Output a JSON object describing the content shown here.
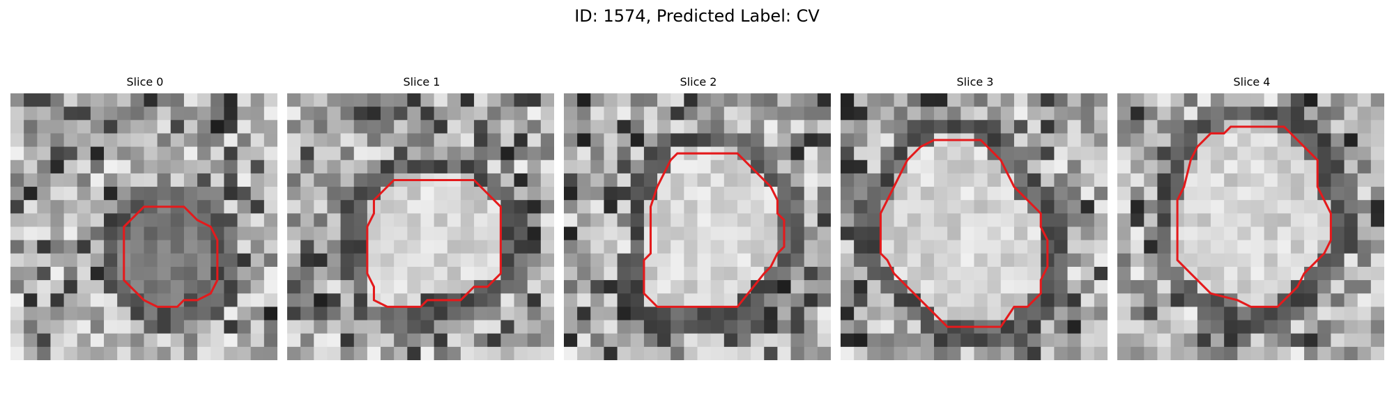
{
  "figure": {
    "title": "ID: 1574, Predicted Label: CV",
    "contour_color": "#e41a1c"
  },
  "panels": [
    {
      "title": "Slice 0",
      "image": "grayscale microscopy crop with small dark round object outlined in red",
      "contour": [
        [
          11,
          8.5
        ],
        [
          13,
          8.5
        ],
        [
          14,
          9.5
        ],
        [
          15,
          10
        ],
        [
          15.5,
          11
        ],
        [
          15.5,
          14
        ],
        [
          15,
          15
        ],
        [
          14,
          15.5
        ],
        [
          13,
          15.5
        ],
        [
          12.5,
          16
        ],
        [
          11,
          16
        ],
        [
          10,
          15.5
        ],
        [
          9.5,
          15
        ],
        [
          8.5,
          14
        ],
        [
          8.5,
          10
        ],
        [
          10,
          8.5
        ]
      ]
    },
    {
      "title": "Slice 1",
      "image": "grayscale microscopy crop with round bright object outlined in red",
      "contour": [
        [
          8,
          6.5
        ],
        [
          14,
          6.5
        ],
        [
          15.5,
          8
        ],
        [
          16,
          8.5
        ],
        [
          16,
          13.5
        ],
        [
          15.5,
          14
        ],
        [
          15,
          14.5
        ],
        [
          14,
          14.5
        ],
        [
          13.5,
          15
        ],
        [
          13,
          15.5
        ],
        [
          10.5,
          15.5
        ],
        [
          10,
          16
        ],
        [
          7.5,
          16
        ],
        [
          6.5,
          15.5
        ],
        [
          6.5,
          14.5
        ],
        [
          6,
          13.5
        ],
        [
          6,
          10
        ],
        [
          6.5,
          9
        ],
        [
          6.5,
          8
        ]
      ]
    },
    {
      "title": "Slice 2",
      "image": "grayscale microscopy crop with round bright object outlined in red",
      "contour": [
        [
          9,
          4.5
        ],
        [
          13,
          4.5
        ],
        [
          15.5,
          7
        ],
        [
          16,
          8
        ],
        [
          16,
          9
        ],
        [
          16.5,
          9.5
        ],
        [
          16.5,
          11.5
        ],
        [
          16,
          12
        ],
        [
          15.5,
          13
        ],
        [
          15,
          13.5
        ],
        [
          13,
          16
        ],
        [
          7,
          16
        ],
        [
          6.5,
          15.5
        ],
        [
          6,
          15
        ],
        [
          6,
          12.5
        ],
        [
          6.5,
          12
        ],
        [
          6.5,
          8.5
        ],
        [
          7,
          7
        ],
        [
          7.5,
          6
        ],
        [
          8,
          5
        ],
        [
          8.5,
          4.5
        ]
      ]
    },
    {
      "title": "Slice 3",
      "image": "grayscale microscopy crop with large round bright object outlined in red",
      "contour": [
        [
          7,
          3.5
        ],
        [
          10.5,
          3.5
        ],
        [
          11,
          4
        ],
        [
          12,
          5
        ],
        [
          12.5,
          6
        ],
        [
          13,
          7
        ],
        [
          14,
          8
        ],
        [
          15,
          9
        ],
        [
          15,
          10
        ],
        [
          15.5,
          11
        ],
        [
          15.5,
          13
        ],
        [
          15,
          14
        ],
        [
          15,
          15
        ],
        [
          14,
          16
        ],
        [
          13,
          16
        ],
        [
          12,
          17.5
        ],
        [
          8,
          17.5
        ],
        [
          7,
          16.5
        ],
        [
          6,
          15.5
        ],
        [
          5,
          14.5
        ],
        [
          4,
          13.5
        ],
        [
          3.5,
          12.5
        ],
        [
          3,
          12
        ],
        [
          3,
          9
        ],
        [
          3.5,
          8
        ],
        [
          4,
          7
        ],
        [
          4.5,
          6
        ],
        [
          5,
          5
        ],
        [
          6,
          4
        ]
      ]
    },
    {
      "title": "Slice 4",
      "image": "grayscale microscopy crop with round bright object in dark ring outlined in red",
      "contour": [
        [
          8.5,
          2.5
        ],
        [
          12.5,
          2.5
        ],
        [
          14,
          4
        ],
        [
          15,
          5
        ],
        [
          15,
          7
        ],
        [
          15.5,
          8
        ],
        [
          16,
          9
        ],
        [
          16,
          11
        ],
        [
          15.5,
          12
        ],
        [
          15,
          12.5
        ],
        [
          14.5,
          13
        ],
        [
          14,
          13.5
        ],
        [
          13.5,
          14.5
        ],
        [
          13,
          15
        ],
        [
          12,
          16
        ],
        [
          10,
          16
        ],
        [
          9,
          15.5
        ],
        [
          7,
          15
        ],
        [
          6,
          14
        ],
        [
          5.5,
          13.5
        ],
        [
          4.5,
          12.5
        ],
        [
          4.5,
          8
        ],
        [
          5,
          7
        ],
        [
          5.5,
          5
        ],
        [
          6,
          4
        ],
        [
          6.5,
          3.5
        ],
        [
          7,
          3
        ],
        [
          8,
          3
        ]
      ]
    }
  ]
}
